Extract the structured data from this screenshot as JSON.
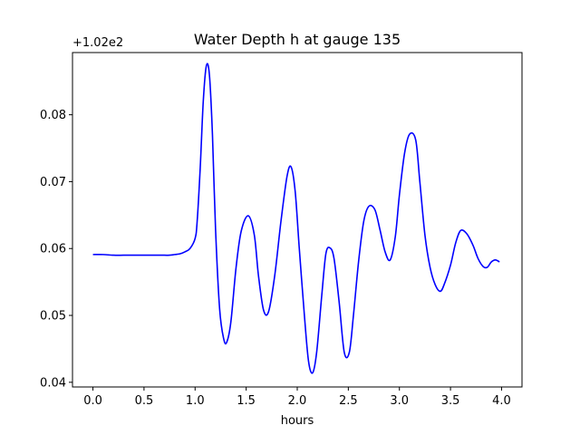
{
  "chart_data": {
    "type": "line",
    "title": "Water Depth h at gauge 135",
    "xlabel": "hours",
    "ylabel": "",
    "y_offset_label": "+1.02e2",
    "xlim": [
      -0.2,
      4.2
    ],
    "ylim": [
      0.0393,
      0.0893
    ],
    "x_ticks": [
      0.0,
      0.5,
      1.0,
      1.5,
      2.0,
      2.5,
      3.0,
      3.5,
      4.0
    ],
    "x_tick_labels": [
      "0.0",
      "0.5",
      "1.0",
      "1.5",
      "2.0",
      "2.5",
      "3.0",
      "3.5",
      "4.0"
    ],
    "y_ticks": [
      0.04,
      0.05,
      0.06,
      0.07,
      0.08
    ],
    "y_tick_labels": [
      "0.04",
      "0.05",
      "0.06",
      "0.07",
      "0.08"
    ],
    "grid": false,
    "color": "#0000ff",
    "series": [
      {
        "x": [
          0.0,
          0.1,
          0.2,
          0.3,
          0.4,
          0.5,
          0.6,
          0.7,
          0.75,
          0.8,
          0.85,
          0.9,
          0.95,
          1.0,
          1.02,
          1.05,
          1.08,
          1.11,
          1.14,
          1.17,
          1.2,
          1.24,
          1.28,
          1.31,
          1.35,
          1.4,
          1.45,
          1.52,
          1.58,
          1.62,
          1.67,
          1.72,
          1.78,
          1.84,
          1.9,
          1.94,
          1.98,
          2.02,
          2.07,
          2.11,
          2.15,
          2.19,
          2.24,
          2.28,
          2.32,
          2.36,
          2.41,
          2.46,
          2.51,
          2.55,
          2.6,
          2.65,
          2.7,
          2.76,
          2.81,
          2.86,
          2.91,
          2.96,
          3.0,
          3.05,
          3.1,
          3.16,
          3.2,
          3.25,
          3.3,
          3.35,
          3.4,
          3.44,
          3.5,
          3.55,
          3.6,
          3.66,
          3.72,
          3.77,
          3.82,
          3.86,
          3.9,
          3.94,
          3.98
        ],
        "y": [
          0.0591,
          0.0591,
          0.059,
          0.059,
          0.059,
          0.059,
          0.059,
          0.059,
          0.059,
          0.0591,
          0.0592,
          0.0595,
          0.06,
          0.0615,
          0.064,
          0.072,
          0.082,
          0.0873,
          0.086,
          0.077,
          0.063,
          0.051,
          0.0465,
          0.046,
          0.049,
          0.057,
          0.0625,
          0.0649,
          0.062,
          0.056,
          0.0508,
          0.0506,
          0.056,
          0.064,
          0.0708,
          0.0722,
          0.0685,
          0.06,
          0.05,
          0.0432,
          0.0414,
          0.0445,
          0.053,
          0.0592,
          0.0601,
          0.0585,
          0.052,
          0.0445,
          0.0445,
          0.05,
          0.058,
          0.064,
          0.0663,
          0.0658,
          0.0628,
          0.0595,
          0.0583,
          0.0618,
          0.068,
          0.0742,
          0.0771,
          0.0762,
          0.07,
          0.062,
          0.0572,
          0.0546,
          0.0536,
          0.0547,
          0.0575,
          0.0608,
          0.0627,
          0.0622,
          0.0605,
          0.0585,
          0.0573,
          0.0572,
          0.058,
          0.0583,
          0.058
        ]
      }
    ]
  }
}
